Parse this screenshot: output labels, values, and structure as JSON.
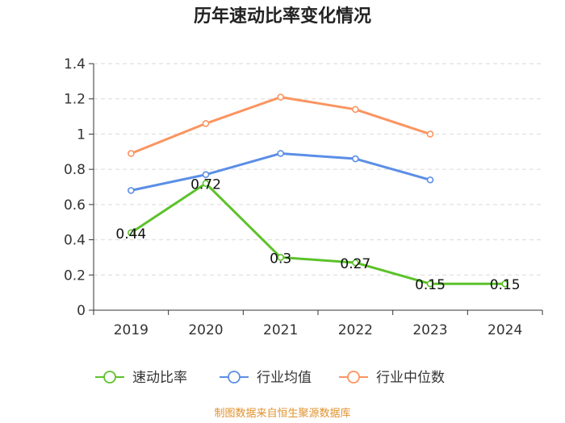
{
  "chart_data": {
    "type": "line",
    "title": "历年速动比率变化情况",
    "categories": [
      "2019",
      "2020",
      "2021",
      "2022",
      "2023",
      "2024"
    ],
    "ylim": [
      0,
      1.4
    ],
    "yticks": [
      0,
      0.2,
      0.4,
      0.6,
      0.8,
      1,
      1.2,
      1.4
    ],
    "ytick_labels": [
      "0",
      "0.2",
      "0.4",
      "0.6",
      "0.8",
      "1",
      "1.2",
      "1.4"
    ],
    "grid": true,
    "legend_position": "bottom",
    "series": [
      {
        "name": "速动比率",
        "color": "#5cc22a",
        "values": [
          0.44,
          0.72,
          0.3,
          0.27,
          0.15,
          0.15
        ],
        "labels": [
          "0.44",
          "0.72",
          "0.3",
          "0.27",
          "0.15",
          "0.15"
        ]
      },
      {
        "name": "行业均值",
        "color": "#5b8ee6",
        "values": [
          0.68,
          0.77,
          0.89,
          0.86,
          0.74,
          null
        ]
      },
      {
        "name": "行业中位数",
        "color": "#fa9560",
        "values": [
          0.89,
          1.06,
          1.21,
          1.14,
          1.0,
          null
        ]
      }
    ]
  },
  "source_text": "制图数据来自恒生聚源数据库"
}
